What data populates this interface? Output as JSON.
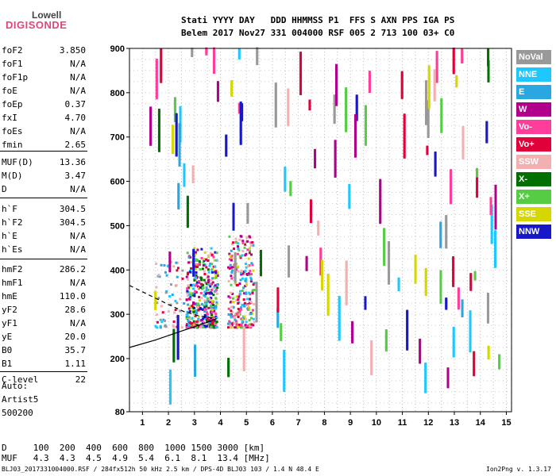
{
  "logo": {
    "line1": "Lowell",
    "line2": "DIGISONDE"
  },
  "header": {
    "line1": "Stati YYYY DAY   DDD HHMMSS P1  FFS S AXN PPS IGA PS",
    "line2": "Belem 2017 Nov27 331 004000 RSF 005 2 713 100 03+ C0"
  },
  "params": [
    {
      "name": "foF2",
      "value": "3.850"
    },
    {
      "name": "foF1",
      "value": "N/A"
    },
    {
      "name": "foF1p",
      "value": "N/A"
    },
    {
      "name": "foE",
      "value": "N/A"
    },
    {
      "name": "foEp",
      "value": "0.37"
    },
    {
      "name": "fxI",
      "value": "4.70"
    },
    {
      "name": "foEs",
      "value": "N/A"
    },
    {
      "name": "fmin",
      "value": "2.65"
    },
    {
      "name": "MUF(D)",
      "value": "13.36"
    },
    {
      "name": "M(D)",
      "value": "3.47"
    },
    {
      "name": "D",
      "value": "N/A"
    },
    {
      "name": "h`F",
      "value": "304.5"
    },
    {
      "name": "h`F2",
      "value": "304.5"
    },
    {
      "name": "h`E",
      "value": "N/A"
    },
    {
      "name": "h`Es",
      "value": "N/A"
    },
    {
      "name": "hmF2",
      "value": "286.2"
    },
    {
      "name": "hmF1",
      "value": "N/A"
    },
    {
      "name": "hmE",
      "value": "110.0"
    },
    {
      "name": "yF2",
      "value": "28.6"
    },
    {
      "name": "yF1",
      "value": "N/A"
    },
    {
      "name": "yE",
      "value": "20.0"
    },
    {
      "name": "B0",
      "value": "35.7"
    },
    {
      "name": "B1",
      "value": "1.11"
    },
    {
      "name": "C-level",
      "value": "22"
    }
  ],
  "autoscale": {
    "line1": "Auto:",
    "line2": "Artist5",
    "line3": "500200"
  },
  "legend": [
    {
      "label": "NoVal",
      "color": "#999999"
    },
    {
      "label": "NNE",
      "color": "#1ec8ff"
    },
    {
      "label": "E",
      "color": "#2aa6e0"
    },
    {
      "label": "W",
      "color": "#b0008c"
    },
    {
      "label": "Vo-",
      "color": "#ff3d9a"
    },
    {
      "label": "Vo+",
      "color": "#e0003a"
    },
    {
      "label": "SSW",
      "color": "#f4b0b0"
    },
    {
      "label": "X-",
      "color": "#007000"
    },
    {
      "label": "X+",
      "color": "#55cc44"
    },
    {
      "label": "SSE",
      "color": "#d6d600"
    },
    {
      "label": "NNW",
      "color": "#1818c8"
    }
  ],
  "footer": {
    "row1": "D     100  200  400  600  800  1000 1500 3000 [km]",
    "row2": "MUF   4.3  4.3  4.5  4.9  5.4  6.1  8.1  13.4 [MHz]",
    "file_info": "BLJ03_2017331004000.RSF / 284fx512h 50 kHz 2.5 km / DPS-4D BLJ03 103 / 1.4 N 48.4 E",
    "version": "Ion2Png v. 1.3.17"
  },
  "chart_data": {
    "type": "scatter",
    "title": "",
    "xlabel": "",
    "ylabel": "",
    "xlim": [
      0.5,
      15.2
    ],
    "ylim": [
      80,
      900
    ],
    "x_ticks": [
      "1",
      "2",
      "3",
      "4",
      "5",
      "6",
      "7",
      "8",
      "9",
      "10",
      "11",
      "12",
      "13",
      "14",
      "15"
    ],
    "y_ticks": [
      "80",
      "200",
      "300",
      "400",
      "500",
      "600",
      "700",
      "800",
      "900"
    ],
    "grid": "dotted",
    "legend_position": "right",
    "trace_lines": [
      {
        "name": "profile-solid",
        "style": "solid",
        "x": [
          0.5,
          1.5,
          2.5,
          3.0,
          3.5,
          3.85
        ],
        "y": [
          225,
          242,
          262,
          272,
          282,
          290
        ]
      },
      {
        "name": "profile-dashed",
        "style": "dashed",
        "x": [
          0.5,
          1.2,
          2.0,
          2.6,
          3.2,
          3.85
        ],
        "y": [
          365,
          345,
          322,
          306,
          296,
          290
        ]
      }
    ],
    "clusters": [
      {
        "x": [
          2.7,
          3.9
        ],
        "y": [
          270,
          450
        ],
        "n": 420,
        "colors": [
          "Vo-",
          "Vo+",
          "W",
          "E",
          "NNE",
          "X+",
          "X-",
          "SSE",
          "SSW",
          "NNW"
        ]
      },
      {
        "x": [
          4.3,
          5.3
        ],
        "y": [
          270,
          480
        ],
        "n": 260,
        "colors": [
          "Vo-",
          "Vo+",
          "W",
          "E",
          "NNE",
          "X+",
          "SSW",
          "SSE"
        ]
      },
      {
        "x": [
          1.5,
          2.6
        ],
        "y": [
          270,
          420
        ],
        "n": 60,
        "colors": [
          "E",
          "NNE",
          "Vo+",
          "SSW",
          "NoVal"
        ]
      }
    ],
    "scattered_traces": {
      "count": 120,
      "x_range": [
        1.2,
        14.9
      ],
      "y_range": [
        90,
        900
      ]
    }
  }
}
